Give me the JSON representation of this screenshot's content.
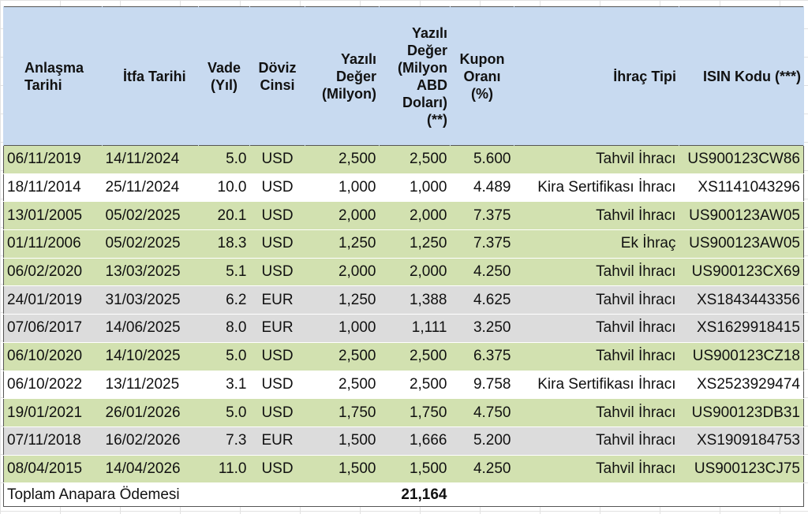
{
  "headers": {
    "agreement_date": "Anlaşma Tarihi",
    "maturity_date": "İtfa Tarihi",
    "tenor": "Vade (Yıl)",
    "currency": "Döviz Cinsi",
    "nominal": "Yazılı Değer (Milyon)",
    "nominal_usd": "Yazılı Değer (Milyon ABD Doları) (**)",
    "coupon": "Kupon Oranı (%)",
    "issue_type": "İhraç Tipi",
    "isin": "ISIN Kodu (***)"
  },
  "rows": [
    {
      "style": "green",
      "agreement_date": "06/11/2019",
      "maturity_date": "14/11/2024",
      "tenor": "5.0",
      "currency": "USD",
      "nominal": "2,500",
      "nominal_usd": "2,500",
      "coupon": "5.600",
      "issue_type": "Tahvil İhracı",
      "isin": "US900123CW86"
    },
    {
      "style": "white",
      "agreement_date": "18/11/2014",
      "maturity_date": "25/11/2024",
      "tenor": "10.0",
      "currency": "USD",
      "nominal": "1,000",
      "nominal_usd": "1,000",
      "coupon": "4.489",
      "issue_type": "Kira Sertifikası İhracı",
      "isin": "XS1141043296"
    },
    {
      "style": "green",
      "agreement_date": "13/01/2005",
      "maturity_date": "05/02/2025",
      "tenor": "20.1",
      "currency": "USD",
      "nominal": "2,000",
      "nominal_usd": "2,000",
      "coupon": "7.375",
      "issue_type": "Tahvil İhracı",
      "isin": "US900123AW05"
    },
    {
      "style": "green",
      "agreement_date": "01/11/2006",
      "maturity_date": "05/02/2025",
      "tenor": "18.3",
      "currency": "USD",
      "nominal": "1,250",
      "nominal_usd": "1,250",
      "coupon": "7.375",
      "issue_type": "Ek İhraç",
      "isin": "US900123AW05"
    },
    {
      "style": "green",
      "agreement_date": "06/02/2020",
      "maturity_date": "13/03/2025",
      "tenor": "5.1",
      "currency": "USD",
      "nominal": "2,000",
      "nominal_usd": "2,000",
      "coupon": "4.250",
      "issue_type": "Tahvil İhracı",
      "isin": "US900123CX69"
    },
    {
      "style": "grey",
      "agreement_date": "24/01/2019",
      "maturity_date": "31/03/2025",
      "tenor": "6.2",
      "currency": "EUR",
      "nominal": "1,250",
      "nominal_usd": "1,388",
      "coupon": "4.625",
      "issue_type": "Tahvil İhracı",
      "isin": "XS1843443356"
    },
    {
      "style": "grey",
      "agreement_date": "07/06/2017",
      "maturity_date": "14/06/2025",
      "tenor": "8.0",
      "currency": "EUR",
      "nominal": "1,000",
      "nominal_usd": "1,111",
      "coupon": "3.250",
      "issue_type": "Tahvil İhracı",
      "isin": "XS1629918415"
    },
    {
      "style": "green",
      "agreement_date": "06/10/2020",
      "maturity_date": "14/10/2025",
      "tenor": "5.0",
      "currency": "USD",
      "nominal": "2,500",
      "nominal_usd": "2,500",
      "coupon": "6.375",
      "issue_type": "Tahvil İhracı",
      "isin": "US900123CZ18"
    },
    {
      "style": "white",
      "agreement_date": "06/10/2022",
      "maturity_date": "13/11/2025",
      "tenor": "3.1",
      "currency": "USD",
      "nominal": "2,500",
      "nominal_usd": "2,500",
      "coupon": "9.758",
      "issue_type": "Kira Sertifikası İhracı",
      "isin": "XS2523929474"
    },
    {
      "style": "green",
      "agreement_date": "19/01/2021",
      "maturity_date": "26/01/2026",
      "tenor": "5.0",
      "currency": "USD",
      "nominal": "1,750",
      "nominal_usd": "1,750",
      "coupon": "4.750",
      "issue_type": "Tahvil İhracı",
      "isin": "US900123DB31"
    },
    {
      "style": "grey",
      "agreement_date": "07/11/2018",
      "maturity_date": "16/02/2026",
      "tenor": "7.3",
      "currency": "EUR",
      "nominal": "1,500",
      "nominal_usd": "1,666",
      "coupon": "5.200",
      "issue_type": "Tahvil İhracı",
      "isin": "XS1909184753"
    },
    {
      "style": "green",
      "agreement_date": "08/04/2015",
      "maturity_date": "14/04/2026",
      "tenor": "11.0",
      "currency": "USD",
      "nominal": "1,500",
      "nominal_usd": "1,500",
      "coupon": "4.250",
      "issue_type": "Tahvil İhracı",
      "isin": "US900123CJ75"
    }
  ],
  "total": {
    "label": "Toplam Anapara Ödemesi",
    "value": "21,164"
  },
  "colors": {
    "header_bg": "#c8daf0",
    "green_row": "#d2e1b0",
    "grey_row": "#dcdcdc",
    "white_row": "#ffffff"
  }
}
